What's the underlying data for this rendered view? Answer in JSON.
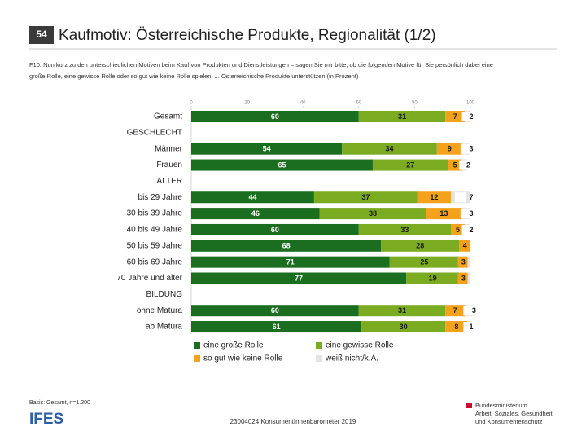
{
  "slide": {
    "page_number": "54",
    "basis": "Basis: Gesamt, n=1.200",
    "logo": "IFES",
    "footer": "23004024 KonsumentInnenbarometer 2019",
    "ministry": [
      "Bundesministerium",
      "Arbeit, Soziales, Gesundheit",
      "und Konsumentenschutz"
    ]
  },
  "chart_data": {
    "type": "stacked-bar-horizontal",
    "title": "Kaufmotiv: Österreichische Produkte, Regionalität (1/2)",
    "subtitle": [
      "F10. Nun kurz zu den unterschiedlichen Motiven beim Kauf von Produkten und Dienstleistungen – sagen Sie mir bitte, ob die folgenden Motive für Sie persönlich dabei eine",
      "große Rolle, eine gewisse Rolle oder so gut wie keine Rolle spielen. ... Österreichische Produkte unterstützen (in Prozent)"
    ],
    "categories": [
      "Gesamt",
      "GESCHLECHT",
      "Männer",
      "Frauen",
      "ALTER",
      "bis 29 Jahre",
      "30 bis 39 Jahre",
      "40 bis 49 Jahre",
      "50 bis 59 Jahre",
      "60 bis 69 Jahre",
      "70 Jahre und älter",
      "BILDUNG",
      "ohne Matura",
      "ab Matura"
    ],
    "series": [
      {
        "name": "eine große Rolle",
        "color": "#1b6d1f",
        "label_color": "#ffffff",
        "values": [
          60,
          null,
          54,
          65,
          null,
          44,
          46,
          60,
          68,
          71,
          77,
          null,
          60,
          61
        ],
        "value_labels": [
          "60",
          null,
          "54",
          "65",
          null,
          "44",
          "46",
          "60",
          "68",
          "71",
          "77",
          null,
          "60",
          "61"
        ]
      },
      {
        "name": "eine gewisse Rolle",
        "color": "#7bab21",
        "label_color": "#1a1a1a",
        "values": [
          31,
          null,
          34,
          27,
          null,
          37,
          38,
          33,
          28,
          25,
          19,
          null,
          31,
          30
        ],
        "value_labels": [
          "31",
          null,
          "34",
          "27",
          null,
          "37",
          "38",
          "33",
          "28",
          "25",
          "19",
          null,
          "31",
          "30"
        ]
      },
      {
        "name": "so gut wie keine Rolle",
        "color": "#f4a21c",
        "label_color": "#1a1a1a",
        "values": [
          7,
          null,
          9,
          5,
          null,
          12,
          13,
          5,
          4,
          3,
          3,
          null,
          7,
          8
        ],
        "value_labels": [
          "7",
          null,
          "9",
          "5",
          null,
          "12",
          "13",
          "5",
          "4",
          "3",
          "3",
          null,
          "7",
          "8"
        ]
      },
      {
        "name": "weiß nicht/k.A.",
        "color": "#e4e4e4",
        "label_color": "#1a1a1a",
        "values": [
          2,
          null,
          3,
          2,
          null,
          7,
          3,
          2,
          0,
          1,
          1,
          null,
          3,
          1
        ],
        "value_labels": [
          "2",
          null,
          "3",
          "2",
          null,
          "7",
          "3",
          "2",
          null,
          null,
          null,
          null,
          "3",
          "1"
        ]
      }
    ],
    "xlim": [
      0,
      100
    ],
    "xticks": [
      0,
      20,
      40,
      60,
      80,
      100
    ],
    "legend": "bottom"
  }
}
